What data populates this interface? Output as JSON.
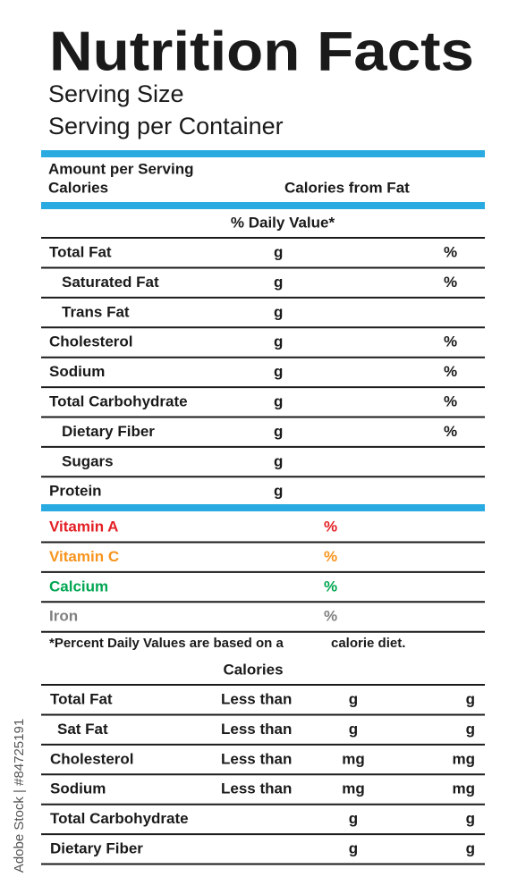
{
  "header": {
    "title": "Nutrition Facts",
    "serving_size": "Serving Size",
    "servings": "Serving per Container"
  },
  "amount": {
    "label": "Amount per Serving",
    "calories": "Calories",
    "calories_from_fat": "Calories from Fat"
  },
  "daily_value_header": "% Daily Value*",
  "nutrients": [
    {
      "name": "Total Fat",
      "unit": "g",
      "percent": "%"
    },
    {
      "name": "Saturated Fat",
      "unit": "g",
      "percent": "%",
      "indent": true
    },
    {
      "name": "Trans Fat",
      "unit": "g",
      "indent": true
    },
    {
      "name": "Cholesterol",
      "unit": "g",
      "percent": "%"
    },
    {
      "name": "Sodium",
      "unit": "g",
      "percent": "%"
    },
    {
      "name": "Total Carbohydrate",
      "unit": "g",
      "percent": "%"
    },
    {
      "name": "Dietary Fiber",
      "unit": "g",
      "percent": "%",
      "indent": true
    },
    {
      "name": "Sugars",
      "unit": "g",
      "indent": true
    },
    {
      "name": "Protein",
      "unit": "g"
    }
  ],
  "vitamins": [
    {
      "name": "Vitamin A",
      "percent": "%",
      "color": "#e31e24"
    },
    {
      "name": "Vitamin C",
      "percent": "%",
      "color": "#f7941d"
    },
    {
      "name": "Calcium",
      "percent": "%",
      "color": "#00a651"
    },
    {
      "name": "Iron",
      "percent": "%",
      "color": "#808080"
    }
  ],
  "footnote": {
    "text": "*Percent Daily Values are based on a",
    "text2": "calorie diet."
  },
  "reference": {
    "header": "Calories",
    "rows": [
      {
        "name": "Total Fat",
        "qualifier": "Less than",
        "unit1": "g",
        "unit2": "g"
      },
      {
        "name": "Sat Fat",
        "qualifier": "Less than",
        "unit1": "g",
        "unit2": "g"
      },
      {
        "name": "Cholesterol",
        "qualifier": "Less than",
        "unit1": "mg",
        "unit2": "mg"
      },
      {
        "name": "Sodium",
        "qualifier": "Less than",
        "unit1": "mg",
        "unit2": "mg"
      },
      {
        "name": "Total Carbohydrate",
        "unit1": "g",
        "unit2": "g"
      },
      {
        "name": "Dietary Fiber",
        "unit1": "g",
        "unit2": "g"
      }
    ]
  },
  "watermark": "Adobe Stock | #84725191"
}
